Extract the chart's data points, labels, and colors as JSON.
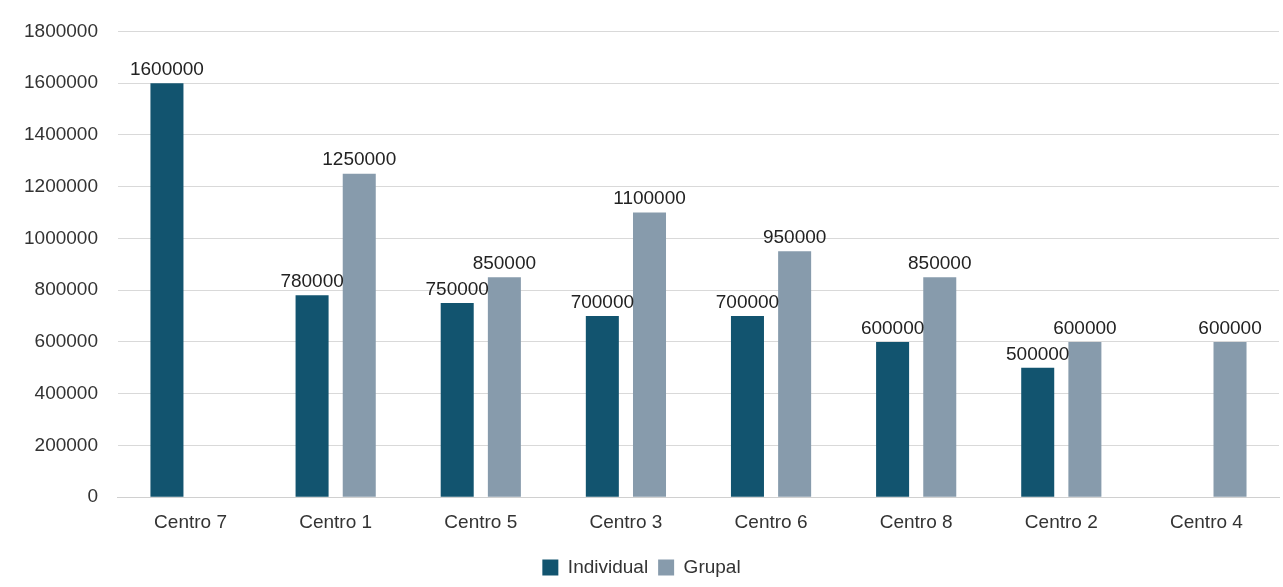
{
  "chart_data": {
    "type": "bar",
    "categories": [
      "Centro 7",
      "Centro 1",
      "Centro 5",
      "Centro 3",
      "Centro 6",
      "Centro 8",
      "Centro 2",
      "Centro 4"
    ],
    "series": [
      {
        "name": "Individual",
        "color": "#12546f",
        "values": [
          1600000,
          780000,
          750000,
          700000,
          700000,
          600000,
          500000,
          null
        ]
      },
      {
        "name": "Grupal",
        "color": "#879bac",
        "values": [
          null,
          1250000,
          850000,
          1100000,
          950000,
          850000,
          600000,
          600000
        ]
      }
    ],
    "ylim": [
      0,
      1800000
    ],
    "yticks": [
      0,
      200000,
      400000,
      600000,
      800000,
      1000000,
      1200000,
      1400000,
      1600000,
      1800000
    ],
    "grid": "y",
    "legend": "bottom",
    "data_labels": true
  }
}
